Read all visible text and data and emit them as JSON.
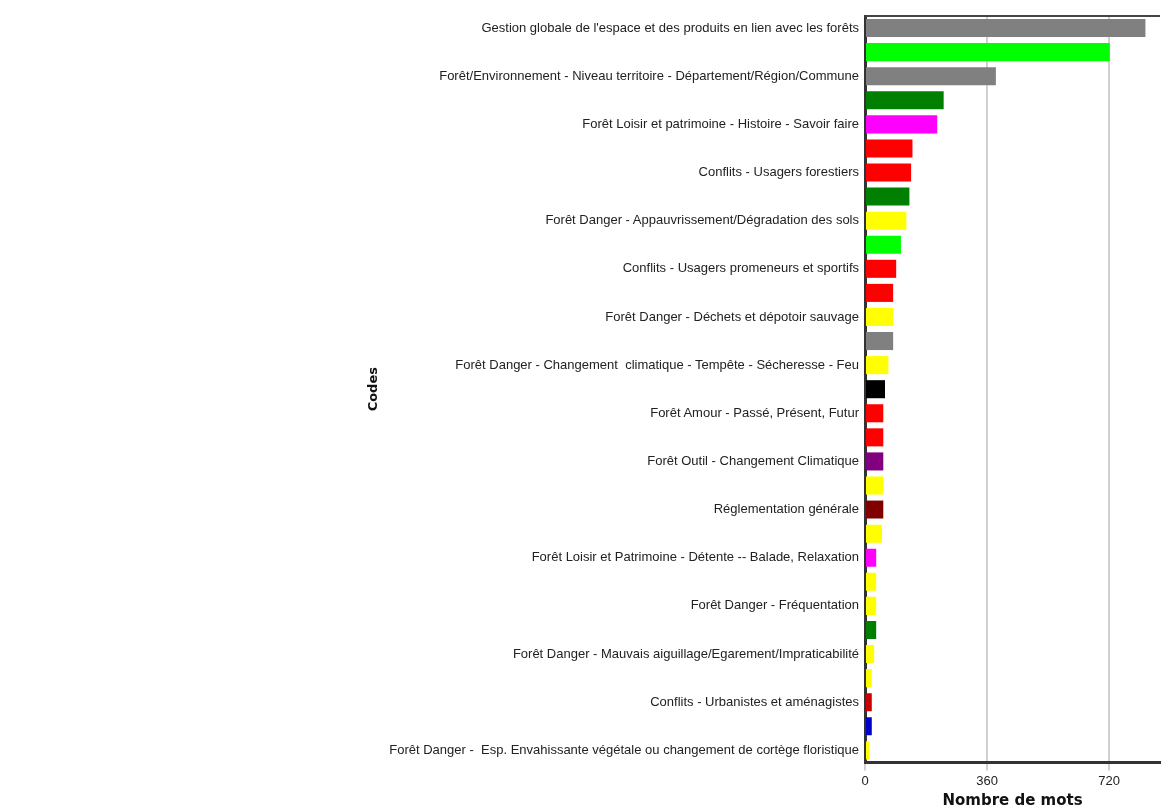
{
  "chart_data": {
    "type": "bar",
    "orientation": "horizontal",
    "xlabel": "Nombre de mots",
    "ylabel": "Codes",
    "categories": [
      "Gestion globale de l'espace et des produits en lien avec les forêts",
      null,
      "Forêt/Environnement - Niveau territoire - Département/Région/Commune",
      null,
      "Forêt Loisir et patrimoine - Histoire - Savoir faire",
      null,
      "Conflits - Usagers forestiers",
      null,
      "Forêt Danger - Appauvrissement/Dégradation des sols",
      null,
      "Conflits - Usagers promeneurs et sportifs",
      null,
      "Forêt Danger - Déchets et dépotoir sauvage",
      null,
      "Forêt Danger - Changement  climatique - Tempête - Sécheresse - Feu",
      null,
      "Forêt Amour - Passé, Présent, Futur",
      null,
      "Forêt Outil - Changement Climatique",
      null,
      "Réglementation générale",
      null,
      "Forêt Loisir et Patrimoine - Détente -- Balade, Relaxation",
      null,
      "Forêt Danger - Fréquentation",
      null,
      "Forêt Danger - Mauvais aiguillage/Egarement/Impraticabilité",
      null,
      "Conflits - Urbanistes et aménagistes",
      null,
      "Forêt Danger -  Esp. Envahissante végétale ou changement de cortège floristique"
    ],
    "values": [
      827,
      722,
      386,
      232,
      213,
      140,
      136,
      131,
      122,
      106,
      92,
      83,
      83,
      83,
      69,
      59,
      54,
      54,
      54,
      54,
      54,
      50,
      33,
      33,
      33,
      33,
      27,
      20,
      20,
      20,
      13
    ],
    "colors": [
      "#808080",
      "#00ff00",
      "#808080",
      "#008000",
      "#ff00ff",
      "#ff0000",
      "#ff0000",
      "#008000",
      "#ffff00",
      "#00ff00",
      "#ff0000",
      "#ff0000",
      "#ffff00",
      "#808080",
      "#ffff00",
      "#000000",
      "#ff0000",
      "#ff0000",
      "#800080",
      "#ffff00",
      "#800000",
      "#ffff00",
      "#ff00ff",
      "#ffff00",
      "#ffff00",
      "#008000",
      "#ffff00",
      "#ffff00",
      "#cc0000",
      "#0000cc",
      "#ffff00"
    ],
    "xlim": [
      0,
      870
    ],
    "xticks": [
      0,
      360,
      720
    ],
    "grid": "x",
    "legend": false
  }
}
